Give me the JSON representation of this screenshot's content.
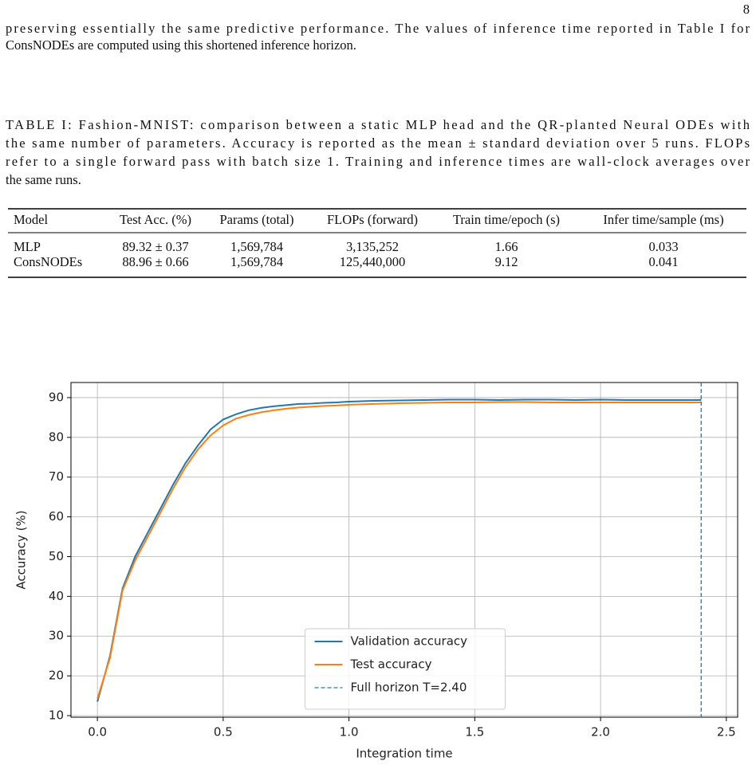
{
  "page_number": "8",
  "paragraph": [
    "preserving essentially the same predictive performance. The values of inference time reported in Table I for",
    "ConsNODEs are computed using this shortened inference horizon."
  ],
  "caption": [
    "TABLE I: Fashion-MNIST: comparison between a static MLP head and the QR-planted Neural ODEs with",
    "the same number of parameters. Accuracy is reported as the mean ± standard deviation over 5 runs. FLOPs",
    "refer to a single forward pass with batch size 1. Training and inference times are wall-clock averages over",
    "the same runs."
  ],
  "table": {
    "header": [
      "Model",
      "Test Acc. (%)",
      "Params (total)",
      "FLOPs (forward)",
      "Train time/epoch (s)",
      "Infer time/sample (ms)"
    ],
    "rows": [
      [
        "MLP",
        "89.32 ± 0.37",
        "1,569,784",
        "3,135,252",
        "1.66",
        "0.033"
      ],
      [
        "ConsNODEs",
        "88.96 ± 0.66",
        "1,569,784",
        "125,440,000",
        "9.12",
        "0.041"
      ]
    ]
  },
  "chart_data": {
    "type": "line",
    "x_label": "Integration time",
    "y_label": "Accuracy (%)",
    "x": [
      0,
      0.05,
      0.1,
      0.15,
      0.2,
      0.25,
      0.3,
      0.35,
      0.4,
      0.45,
      0.5,
      0.55,
      0.6,
      0.65,
      0.7,
      0.75,
      0.8,
      0.85,
      0.9,
      0.95,
      1.0,
      1.1,
      1.2,
      1.3,
      1.4,
      1.5,
      1.6,
      1.7,
      1.8,
      1.9,
      2.0,
      2.1,
      2.2,
      2.3,
      2.4
    ],
    "series": [
      {
        "name": "Validation accuracy",
        "color": "#1f77b4",
        "values": [
          13.5,
          25,
          42,
          50,
          56,
          62,
          68,
          73.5,
          78,
          82,
          84.5,
          85.8,
          86.8,
          87.4,
          87.8,
          88.1,
          88.4,
          88.5,
          88.7,
          88.8,
          89.0,
          89.2,
          89.3,
          89.4,
          89.5,
          89.5,
          89.4,
          89.5,
          89.5,
          89.4,
          89.5,
          89.4,
          89.4,
          89.4,
          89.4
        ]
      },
      {
        "name": "Test accuracy",
        "color": "#ff7f0e",
        "values": [
          14.2,
          24.5,
          41.5,
          49,
          55,
          61,
          67,
          72.5,
          77,
          80.5,
          83,
          84.7,
          85.6,
          86.3,
          86.8,
          87.2,
          87.5,
          87.7,
          87.9,
          88.0,
          88.2,
          88.4,
          88.6,
          88.7,
          88.8,
          88.8,
          88.9,
          88.9,
          88.8,
          88.8,
          88.8,
          88.8,
          88.8,
          88.8,
          88.8
        ]
      }
    ],
    "reference_lines": [
      {
        "name": "Full horizon T=2.40",
        "x": 2.4,
        "color": "#1f77b4",
        "style": "dashed"
      }
    ],
    "xlim": [
      -0.105,
      2.545
    ],
    "ylim": [
      9.6,
      93.8
    ],
    "xticks": [
      {
        "value": 0,
        "label": "0.0"
      },
      {
        "value": 0.5,
        "label": "0.5"
      },
      {
        "value": 1,
        "label": "1.0"
      },
      {
        "value": 1.5,
        "label": "1.5"
      },
      {
        "value": 2,
        "label": "2.0"
      },
      {
        "value": 2.5,
        "label": "2.5"
      }
    ],
    "yticks": [
      10,
      20,
      30,
      40,
      50,
      60,
      70,
      80,
      90
    ],
    "grid": true,
    "legend": "lower center"
  }
}
